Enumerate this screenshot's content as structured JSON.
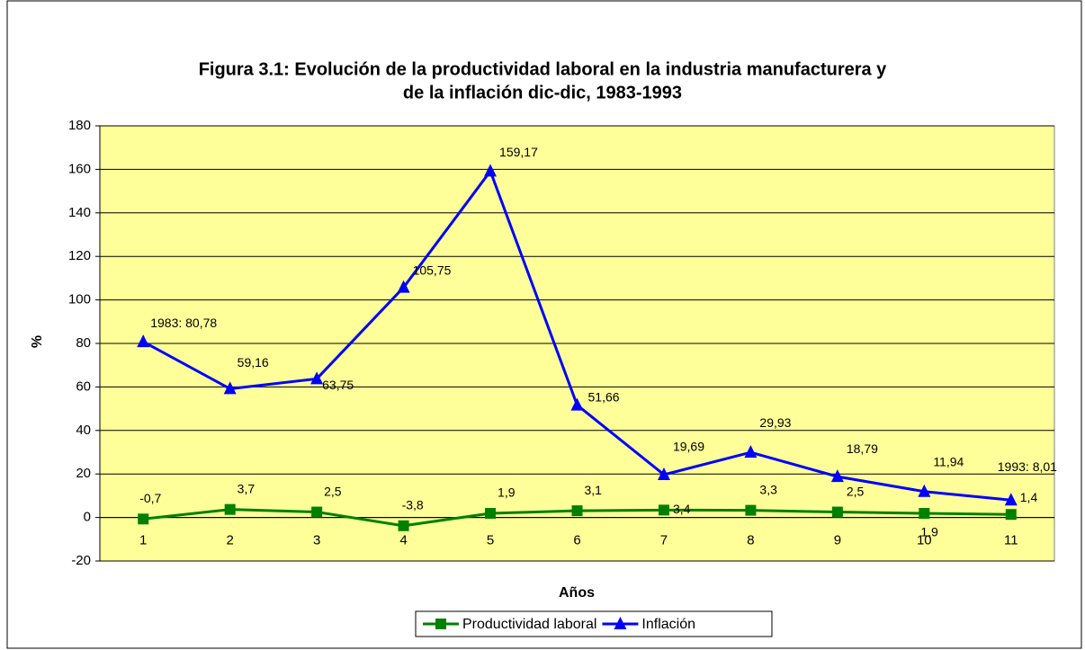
{
  "chart_data": {
    "type": "line",
    "title": [
      "Figura 3.1: Evolución de la productividad laboral en la industria manufacturera y",
      "de la inflación dic-dic, 1983-1993"
    ],
    "x_label": "Años",
    "y_label": "%",
    "categories": [
      "1",
      "2",
      "3",
      "4",
      "5",
      "6",
      "7",
      "8",
      "9",
      "10",
      "11"
    ],
    "ylim": [
      -20,
      180
    ],
    "yticks": [
      -20,
      0,
      20,
      40,
      60,
      80,
      100,
      120,
      140,
      160,
      180
    ],
    "grid": true,
    "legend": "bottom",
    "series": [
      {
        "name": "Productividad laboral",
        "color": "#008000",
        "marker": "square",
        "values": [
          -0.7,
          3.7,
          2.5,
          -3.8,
          1.9,
          3.1,
          3.4,
          3.3,
          2.5,
          1.9,
          1.4
        ],
        "value_labels": [
          "-0,7",
          "3,7",
          "2,5",
          "-3,8",
          "1,9",
          "3,1",
          "3,4",
          "3,3",
          "2,5",
          "1,9",
          "1,4"
        ]
      },
      {
        "name": "Inflación",
        "color": "#0000ff",
        "marker": "triangle",
        "values": [
          80.78,
          59.16,
          63.75,
          105.75,
          159.17,
          51.66,
          19.69,
          29.93,
          18.79,
          11.94,
          8.01
        ],
        "value_labels": [
          "1983: 80,78",
          "59,16",
          "63,75",
          "105,75",
          "159,17",
          "51,66",
          "19,69",
          "29,93",
          "18,79",
          "11,94",
          "1993: 8,01"
        ]
      }
    ]
  }
}
